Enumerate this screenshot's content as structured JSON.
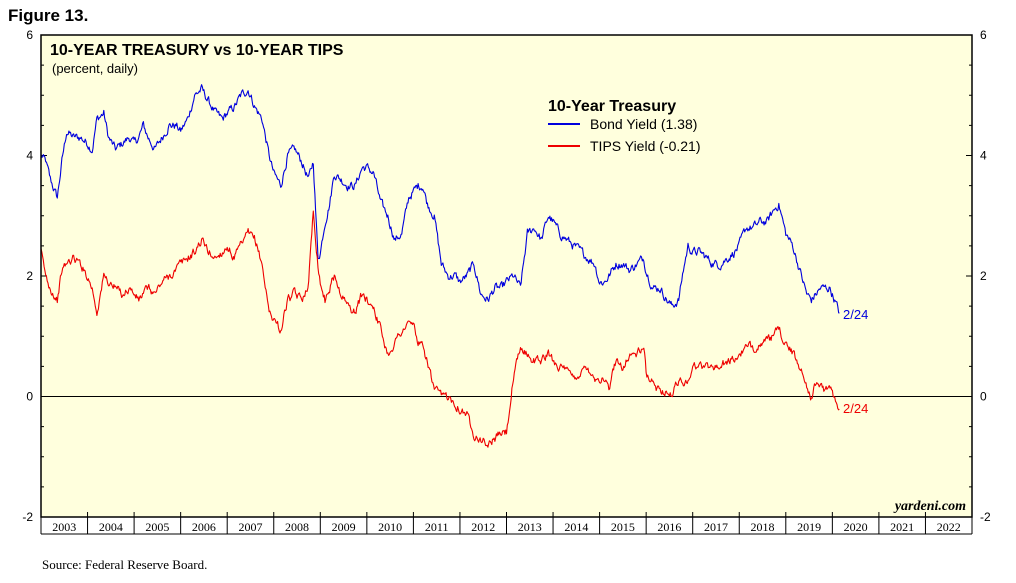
{
  "figure_label": "Figure 13.",
  "source": "Source: Federal Reserve Board.",
  "watermark": "yardeni.com",
  "chart_data": {
    "type": "line",
    "title": "10-YEAR TREASURY vs 10-YEAR TIPS",
    "subtitle": "(percent, daily)",
    "legend_title": "10-Year Treasury",
    "xlabel": "",
    "ylabel": "",
    "xlim": [
      2003,
      2023
    ],
    "ylim": [
      -2,
      6
    ],
    "y_ticks": [
      "6",
      "4",
      "2",
      "0",
      "-2"
    ],
    "x_tick_labels": [
      "2003",
      "2004",
      "2005",
      "2006",
      "2007",
      "2008",
      "2009",
      "2010",
      "2011",
      "2012",
      "2013",
      "2014",
      "2015",
      "2016",
      "2017",
      "2018",
      "2019",
      "2020",
      "2021",
      "2022"
    ],
    "end_label": "2/24",
    "series": [
      {
        "name": "Bond Yield (1.38)",
        "color": "#0000dd",
        "x": [
          2003.0,
          2003.1,
          2003.2,
          2003.35,
          2003.45,
          2003.55,
          2003.7,
          2003.85,
          2004.0,
          2004.1,
          2004.2,
          2004.35,
          2004.45,
          2004.6,
          2004.75,
          2004.9,
          2005.0,
          2005.1,
          2005.2,
          2005.3,
          2005.45,
          2005.6,
          2005.75,
          2005.9,
          2006.0,
          2006.15,
          2006.3,
          2006.45,
          2006.6,
          2006.75,
          2006.9,
          2007.0,
          2007.15,
          2007.3,
          2007.45,
          2007.6,
          2007.75,
          2007.9,
          2008.0,
          2008.15,
          2008.3,
          2008.45,
          2008.6,
          2008.75,
          2008.85,
          2008.95,
          2009.0,
          2009.1,
          2009.2,
          2009.3,
          2009.45,
          2009.6,
          2009.75,
          2009.9,
          2010.0,
          2010.15,
          2010.3,
          2010.45,
          2010.6,
          2010.75,
          2010.9,
          2011.0,
          2011.1,
          2011.2,
          2011.3,
          2011.45,
          2011.6,
          2011.75,
          2011.9,
          2012.0,
          2012.15,
          2012.3,
          2012.45,
          2012.6,
          2012.75,
          2012.9,
          2013.0,
          2013.15,
          2013.3,
          2013.45,
          2013.6,
          2013.75,
          2013.9,
          2014.0,
          2014.15,
          2014.3,
          2014.45,
          2014.6,
          2014.75,
          2014.9,
          2015.0,
          2015.1,
          2015.2,
          2015.35,
          2015.5,
          2015.65,
          2015.8,
          2015.95,
          2016.0,
          2016.15,
          2016.3,
          2016.45,
          2016.55,
          2016.7,
          2016.8,
          2016.9,
          2017.0,
          2017.15,
          2017.3,
          2017.45,
          2017.6,
          2017.75,
          2017.9,
          2018.0,
          2018.15,
          2018.3,
          2018.45,
          2018.6,
          2018.75,
          2018.85,
          2019.0,
          2019.15,
          2019.3,
          2019.45,
          2019.55,
          2019.65,
          2019.75,
          2019.85,
          2019.95,
          2020.05,
          2020.15
        ],
        "values": [
          4.0,
          3.9,
          3.6,
          3.3,
          3.9,
          4.4,
          4.3,
          4.3,
          4.2,
          4.1,
          4.6,
          4.7,
          4.3,
          4.1,
          4.2,
          4.3,
          4.2,
          4.3,
          4.5,
          4.3,
          4.1,
          4.3,
          4.5,
          4.5,
          4.4,
          4.6,
          5.0,
          5.1,
          4.9,
          4.7,
          4.6,
          4.7,
          4.8,
          5.0,
          5.1,
          4.8,
          4.6,
          4.0,
          3.7,
          3.5,
          4.0,
          4.1,
          3.9,
          3.6,
          3.9,
          2.3,
          2.4,
          2.9,
          3.2,
          3.7,
          3.6,
          3.5,
          3.5,
          3.8,
          3.8,
          3.7,
          3.2,
          3.0,
          2.6,
          2.7,
          3.3,
          3.4,
          3.5,
          3.5,
          3.2,
          3.0,
          2.2,
          2.0,
          2.0,
          1.9,
          2.0,
          2.2,
          1.7,
          1.6,
          1.8,
          1.8,
          1.9,
          2.0,
          1.8,
          2.7,
          2.8,
          2.6,
          3.0,
          2.9,
          2.7,
          2.6,
          2.5,
          2.4,
          2.3,
          2.2,
          1.9,
          1.9,
          2.0,
          2.2,
          2.2,
          2.1,
          2.2,
          2.3,
          2.1,
          1.8,
          1.8,
          1.6,
          1.5,
          1.6,
          2.1,
          2.5,
          2.4,
          2.4,
          2.3,
          2.2,
          2.2,
          2.3,
          2.4,
          2.5,
          2.8,
          2.8,
          2.9,
          2.9,
          3.1,
          3.2,
          2.7,
          2.5,
          2.1,
          1.7,
          1.6,
          1.7,
          1.8,
          1.8,
          1.8,
          1.6,
          1.38
        ]
      },
      {
        "name": "TIPS Yield (-0.21)",
        "color": "#ee0000",
        "x": [
          2003.0,
          2003.1,
          2003.2,
          2003.35,
          2003.45,
          2003.55,
          2003.7,
          2003.85,
          2004.0,
          2004.1,
          2004.2,
          2004.35,
          2004.45,
          2004.6,
          2004.75,
          2004.9,
          2005.0,
          2005.1,
          2005.2,
          2005.3,
          2005.45,
          2005.6,
          2005.75,
          2005.9,
          2006.0,
          2006.15,
          2006.3,
          2006.45,
          2006.6,
          2006.75,
          2006.9,
          2007.0,
          2007.15,
          2007.3,
          2007.45,
          2007.6,
          2007.75,
          2007.9,
          2008.0,
          2008.15,
          2008.3,
          2008.45,
          2008.6,
          2008.75,
          2008.85,
          2008.95,
          2009.0,
          2009.1,
          2009.2,
          2009.3,
          2009.45,
          2009.6,
          2009.75,
          2009.9,
          2010.0,
          2010.15,
          2010.3,
          2010.45,
          2010.6,
          2010.75,
          2010.9,
          2011.0,
          2011.1,
          2011.2,
          2011.3,
          2011.45,
          2011.6,
          2011.75,
          2011.9,
          2012.0,
          2012.15,
          2012.3,
          2012.45,
          2012.6,
          2012.75,
          2012.9,
          2013.0,
          2013.15,
          2013.3,
          2013.45,
          2013.6,
          2013.75,
          2013.9,
          2014.0,
          2014.15,
          2014.3,
          2014.45,
          2014.6,
          2014.75,
          2014.9,
          2015.0,
          2015.1,
          2015.2,
          2015.35,
          2015.5,
          2015.65,
          2015.8,
          2015.95,
          2016.0,
          2016.15,
          2016.3,
          2016.45,
          2016.55,
          2016.7,
          2016.8,
          2016.9,
          2017.0,
          2017.15,
          2017.3,
          2017.45,
          2017.6,
          2017.75,
          2017.9,
          2018.0,
          2018.15,
          2018.3,
          2018.45,
          2018.6,
          2018.75,
          2018.85,
          2019.0,
          2019.15,
          2019.3,
          2019.45,
          2019.55,
          2019.65,
          2019.75,
          2019.85,
          2019.95,
          2020.05,
          2020.15
        ],
        "values": [
          2.4,
          2.0,
          1.8,
          1.6,
          2.1,
          2.2,
          2.3,
          2.2,
          2.0,
          1.8,
          1.4,
          2.0,
          1.9,
          1.8,
          1.7,
          1.8,
          1.7,
          1.6,
          1.7,
          1.8,
          1.7,
          1.9,
          2.0,
          2.1,
          2.2,
          2.3,
          2.4,
          2.6,
          2.4,
          2.3,
          2.4,
          2.5,
          2.3,
          2.5,
          2.7,
          2.6,
          2.2,
          1.4,
          1.3,
          1.1,
          1.6,
          1.7,
          1.6,
          1.9,
          3.1,
          2.2,
          1.9,
          1.6,
          1.8,
          2.0,
          1.7,
          1.5,
          1.4,
          1.7,
          1.6,
          1.5,
          1.1,
          0.7,
          0.9,
          1.1,
          1.2,
          1.2,
          0.9,
          0.8,
          0.6,
          0.1,
          0.0,
          0.0,
          -0.1,
          -0.2,
          -0.3,
          -0.6,
          -0.7,
          -0.8,
          -0.7,
          -0.6,
          -0.6,
          0.3,
          0.8,
          0.7,
          0.6,
          0.6,
          0.7,
          0.6,
          0.5,
          0.4,
          0.3,
          0.4,
          0.5,
          0.3,
          0.3,
          0.3,
          0.1,
          0.6,
          0.5,
          0.7,
          0.7,
          0.8,
          0.4,
          0.2,
          0.1,
          0.1,
          0.0,
          0.3,
          0.2,
          0.3,
          0.5,
          0.5,
          0.5,
          0.5,
          0.5,
          0.6,
          0.6,
          0.7,
          0.8,
          0.8,
          0.9,
          0.9,
          1.0,
          1.1,
          0.9,
          0.7,
          0.5,
          0.2,
          0.0,
          0.2,
          0.2,
          0.1,
          0.1,
          0.0,
          -0.21
        ]
      }
    ]
  }
}
